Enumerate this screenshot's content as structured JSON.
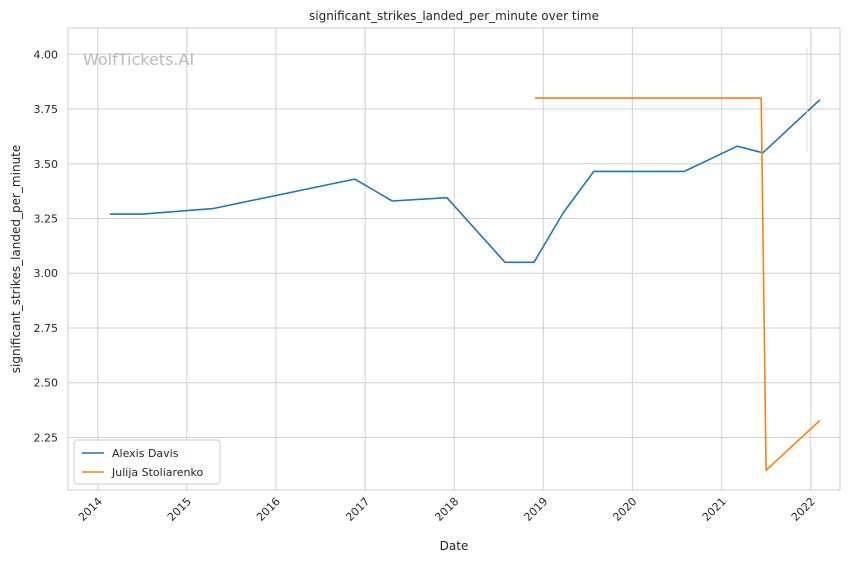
{
  "watermark": "WolfTickets.AI",
  "chart_data": {
    "type": "line",
    "title": "significant_strikes_landed_per_minute over time",
    "xlabel": "Date",
    "ylabel": "significant_strikes_landed_per_minute",
    "xlim": [
      "2013-09-01",
      "2022-05-01"
    ],
    "ylim": [
      2.01,
      4.12
    ],
    "grid": true,
    "legend_position": "lower-left",
    "x_ticks": [
      "2014",
      "2015",
      "2016",
      "2017",
      "2018",
      "2019",
      "2020",
      "2021",
      "2022"
    ],
    "y_ticks": [
      "2.25",
      "2.50",
      "2.75",
      "3.00",
      "3.25",
      "3.50",
      "3.75",
      "4.00"
    ],
    "series": [
      {
        "name": "Alexis Davis",
        "color": "#1f77b4",
        "points": [
          [
            "2014-02-22",
            3.27
          ],
          [
            "2014-07-05",
            3.27
          ],
          [
            "2015-04-18",
            3.295
          ],
          [
            "2016-11-19",
            3.43
          ],
          [
            "2017-04-22",
            3.33
          ],
          [
            "2017-12-02",
            3.345
          ],
          [
            "2018-07-28",
            3.05
          ],
          [
            "2018-11-24",
            3.05
          ],
          [
            "2019-03-23",
            3.275
          ],
          [
            "2019-07-27",
            3.465
          ],
          [
            "2020-08-01",
            3.465
          ],
          [
            "2021-03-06",
            3.58
          ],
          [
            "2021-06-19",
            3.55
          ],
          [
            "2022-02-05",
            3.79
          ]
        ]
      },
      {
        "name": "Julija Stoliarenko",
        "color": "#ff7f0e",
        "points": [
          [
            "2018-12-01",
            3.8
          ],
          [
            "2021-06-12",
            3.8
          ],
          [
            "2021-07-02",
            2.1
          ],
          [
            "2022-02-05",
            2.325
          ]
        ]
      }
    ]
  }
}
